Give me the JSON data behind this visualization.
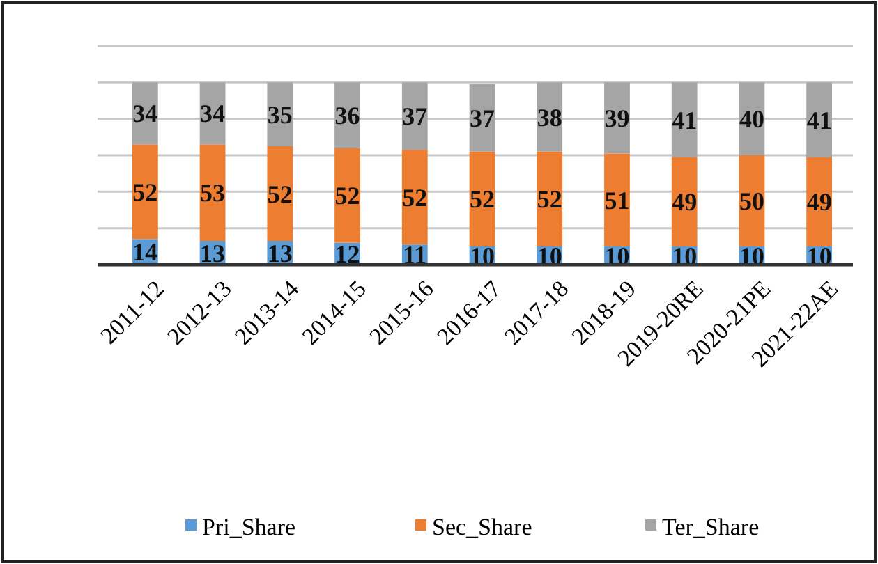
{
  "chart_data": {
    "type": "bar",
    "stacked": true,
    "categories": [
      "2011-12",
      "2012-13",
      "2013-14",
      "2014-15",
      "2015-16",
      "2016-17",
      "2017-18",
      "2018-19",
      "2019-20RE",
      "2020-21PE",
      "2021-22AE"
    ],
    "series": [
      {
        "name": "Pri_Share",
        "color": "#5b9bd5",
        "values": [
          14,
          13,
          13,
          12,
          11,
          10,
          10,
          10,
          10,
          10,
          10
        ]
      },
      {
        "name": "Sec_Share",
        "color": "#ed7d31",
        "values": [
          52,
          53,
          52,
          52,
          52,
          52,
          52,
          51,
          49,
          50,
          49
        ]
      },
      {
        "name": "Ter_Share",
        "color": "#a5a5a5",
        "values": [
          34,
          34,
          35,
          36,
          37,
          37,
          38,
          39,
          41,
          40,
          41
        ]
      }
    ],
    "ylim": [
      0,
      120
    ],
    "yticks": [
      {
        "value": 0,
        "label": null
      },
      {
        "value": 20,
        "label": null
      },
      {
        "value": 40,
        "label": null
      },
      {
        "value": 60,
        "label": null
      },
      {
        "value": 80,
        "label": null
      },
      {
        "value": 100,
        "label": null
      },
      {
        "value": 120,
        "label": null
      }
    ],
    "tick_labels": "x",
    "grid": "y",
    "data_labels": true,
    "legend": "bottom"
  }
}
